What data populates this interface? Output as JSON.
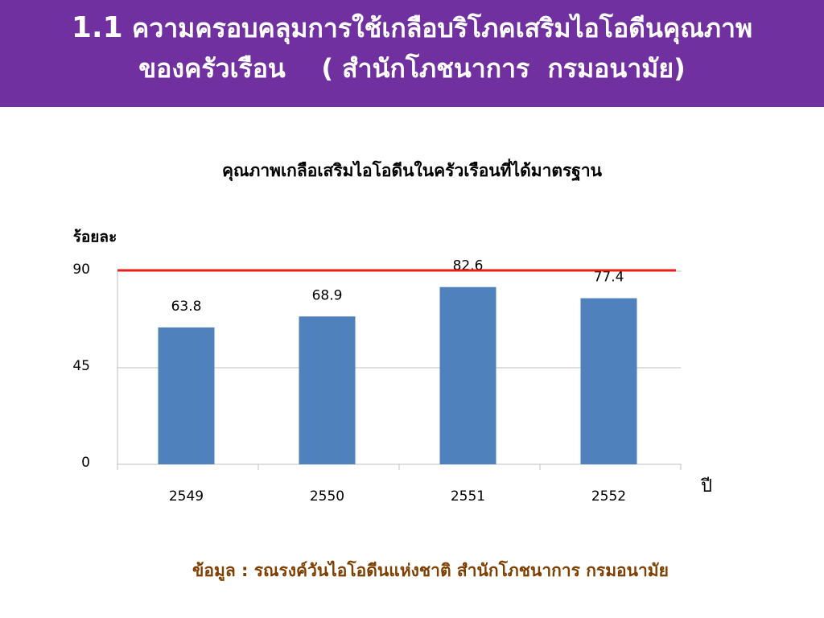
{
  "header": {
    "number": "1.1",
    "lines": [
      "ความครอบคลุมการใช้เกลือบริโภคเสริมไอโอดีนคุณภาพ",
      "ของครัวเรือน    ( สำนักโภชนาการ  กรมอนามัย)"
    ]
  },
  "chart_data": {
    "type": "bar",
    "title": "คุณภาพเกลือเสริมไอโอดีนในครัวเรือนที่ได้มาตรฐาน",
    "y_label": "ร้อยละ",
    "x_label": "ปี",
    "categories": [
      "2549",
      "2550",
      "2551",
      "2552"
    ],
    "values": [
      63.8,
      68.9,
      82.6,
      77.4
    ],
    "color": "#4f81bd",
    "ylim": [
      0,
      90
    ],
    "yticks": [
      0,
      45,
      90
    ],
    "grid": true,
    "target_line": {
      "value": 90,
      "color": "#e8201c"
    }
  },
  "footer": {
    "source": "ข้อมูล : รณรงค์วันไอโอดีนแห่งชาติ สำนักโภชนาการ กรมอนามัย"
  }
}
